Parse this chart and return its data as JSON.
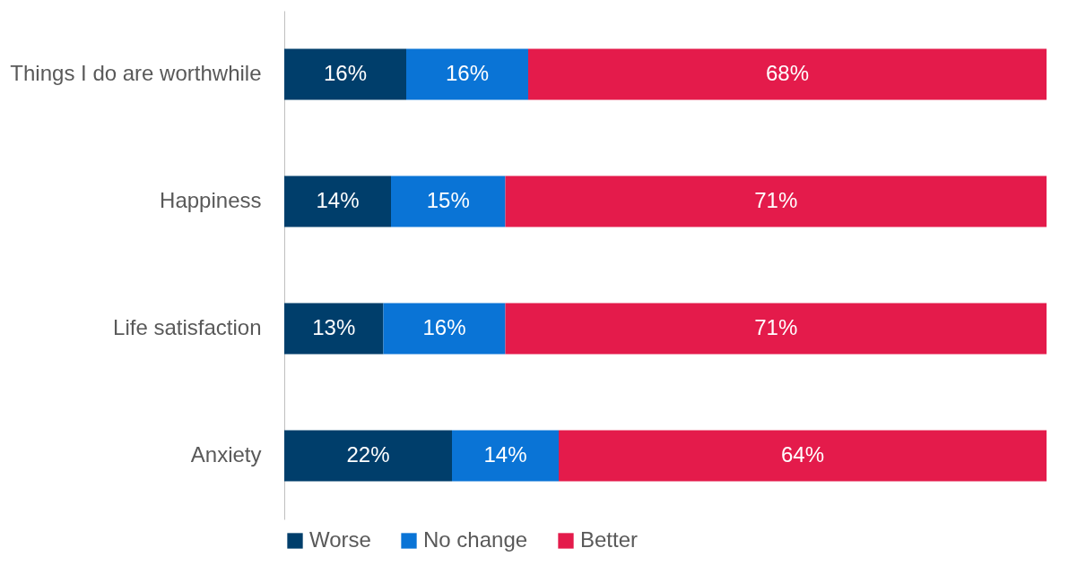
{
  "chart_data": {
    "type": "bar",
    "orientation": "horizontal",
    "stacked": true,
    "legend": "bottom",
    "tick_labels": "y",
    "categories": [
      "Things I do are worthwhile",
      "Happiness",
      "Life satisfaction",
      "Anxiety"
    ],
    "series": [
      {
        "name": "Worse",
        "color": "#003e6b",
        "values": [
          16,
          14,
          13,
          22
        ],
        "value_labels": [
          "16%",
          "14%",
          "13%",
          "22%"
        ]
      },
      {
        "name": "No change",
        "color": "#0a74d6",
        "values": [
          16,
          15,
          16,
          14
        ],
        "value_labels": [
          "16%",
          "15%",
          "16%",
          "14%"
        ]
      },
      {
        "name": "Better",
        "color": "#e41b4b",
        "values": [
          68,
          71,
          71,
          64
        ],
        "value_labels": [
          "68%",
          "71%",
          "71%",
          "64%"
        ]
      }
    ]
  }
}
